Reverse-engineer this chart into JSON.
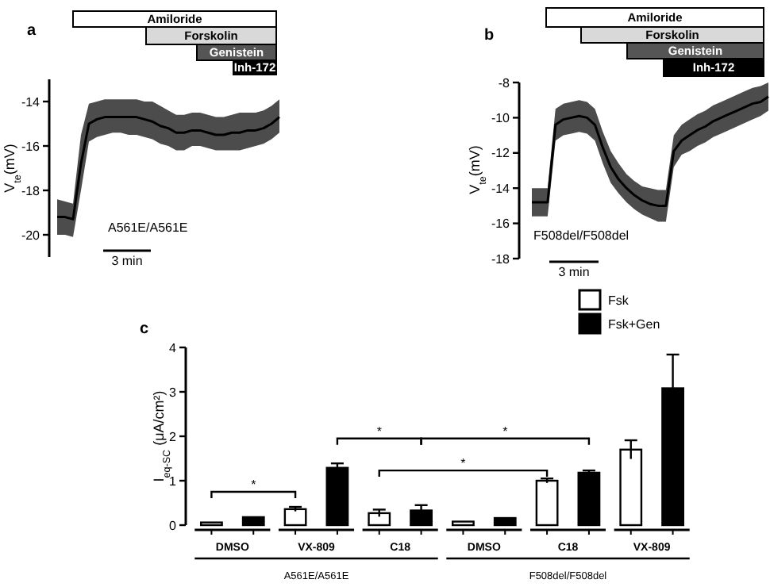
{
  "chart_data": [
    {
      "type": "line",
      "title": "a",
      "ylabel": "V$_{te}$(mV)",
      "categories": [
        null,
        null,
        null,
        null,
        null,
        null,
        null,
        null,
        null,
        null,
        null,
        null,
        null,
        null,
        null,
        null,
        null,
        null,
        null,
        null,
        null,
        null,
        null,
        null,
        null,
        null,
        null,
        null,
        null
      ],
      "ylim": [
        -21,
        -13
      ],
      "yticks": [
        -20,
        -18,
        -16,
        -14
      ],
      "tick_labels": "y",
      "series": [
        {
          "color": "#000000",
          "values": [
            -19.2,
            -19.2,
            -19.3,
            -16.8,
            -15.0,
            -14.8,
            -14.7,
            -14.7,
            -14.7,
            -14.7,
            -14.7,
            -14.8,
            -14.9,
            -15.1,
            -15.2,
            -15.4,
            -15.4,
            -15.3,
            -15.3,
            -15.4,
            -15.5,
            -15.5,
            -15.4,
            -15.4,
            -15.3,
            -15.3,
            -15.2,
            -15.0,
            -14.7
          ],
          "lower": [
            -20.0,
            -20.0,
            -20.1,
            -18.0,
            -15.8,
            -15.6,
            -15.5,
            -15.4,
            -15.4,
            -15.5,
            -15.5,
            -15.6,
            -15.7,
            -15.9,
            -16.0,
            -16.2,
            -16.2,
            -16.0,
            -16.0,
            -16.1,
            -16.2,
            -16.2,
            -16.2,
            -16.2,
            -16.1,
            -16.0,
            -15.9,
            -15.7,
            -15.4
          ],
          "upper": [
            -18.4,
            -18.5,
            -18.6,
            -15.5,
            -14.1,
            -14.0,
            -13.9,
            -13.9,
            -13.9,
            -13.9,
            -13.9,
            -14.0,
            -14.0,
            -14.2,
            -14.4,
            -14.6,
            -14.6,
            -14.5,
            -14.5,
            -14.6,
            -14.7,
            -14.7,
            -14.6,
            -14.5,
            -14.5,
            -14.5,
            -14.4,
            -14.2,
            -13.9
          ]
        }
      ],
      "annotations": [
        "Amiloride",
        "Forskolin",
        "Genistein",
        "Inh-172",
        "A561E/A561E",
        "3 min"
      ]
    },
    {
      "type": "line",
      "title": "b",
      "ylabel": "V$_{te}$(mV)",
      "categories": [
        null,
        null,
        null,
        null,
        null,
        null,
        null,
        null,
        null,
        null,
        null,
        null,
        null,
        null,
        null,
        null,
        null,
        null,
        null,
        null,
        null,
        null,
        null,
        null,
        null,
        null,
        null,
        null,
        null,
        null,
        null
      ],
      "ylim": [
        -18,
        -8
      ],
      "yticks": [
        -18,
        -16,
        -14,
        -12,
        -10,
        -8
      ],
      "tick_labels": "y",
      "series": [
        {
          "color": "#000000",
          "values": [
            -14.8,
            -14.8,
            -14.8,
            -10.4,
            -10.1,
            -10.0,
            -9.9,
            -10.0,
            -10.4,
            -11.7,
            -12.8,
            -13.5,
            -14.0,
            -14.4,
            -14.7,
            -14.9,
            -15.0,
            -15.0,
            -11.9,
            -11.3,
            -11.0,
            -10.7,
            -10.5,
            -10.2,
            -10.0,
            -9.8,
            -9.6,
            -9.4,
            -9.2,
            -9.1,
            -8.8
          ],
          "lower": [
            -15.6,
            -15.6,
            -15.6,
            -11.3,
            -11.0,
            -10.9,
            -10.8,
            -10.9,
            -11.3,
            -12.6,
            -13.7,
            -14.3,
            -14.8,
            -15.2,
            -15.5,
            -15.7,
            -15.9,
            -15.9,
            -12.8,
            -12.1,
            -11.9,
            -11.6,
            -11.4,
            -11.1,
            -10.9,
            -10.7,
            -10.5,
            -10.3,
            -10.1,
            -9.9,
            -9.6
          ],
          "upper": [
            -14.0,
            -14.0,
            -14.0,
            -9.5,
            -9.2,
            -9.1,
            -9.0,
            -9.1,
            -9.5,
            -10.8,
            -11.9,
            -12.6,
            -13.2,
            -13.6,
            -13.9,
            -14.0,
            -14.1,
            -14.1,
            -11.0,
            -10.4,
            -10.1,
            -9.8,
            -9.6,
            -9.3,
            -9.1,
            -8.9,
            -8.7,
            -8.5,
            -8.3,
            -8.2,
            -8.0
          ]
        }
      ],
      "annotations": [
        "Amiloride",
        "Forskolin",
        "Genistein",
        "Inh-172",
        "F508del/F508del",
        "3 min"
      ]
    },
    {
      "type": "bar",
      "title": "c",
      "ylabel": "I$_{eq-SC}$ (μA/cm²)",
      "categories": [
        "DMSO",
        "VX-809",
        "C18",
        "DMSO",
        "C18",
        "VX-809"
      ],
      "ylim": [
        0,
        4
      ],
      "yticks": [
        0,
        1,
        2,
        3,
        4
      ],
      "legend": "top right",
      "series": [
        {
          "name": "Fsk",
          "color": "#ffffff",
          "values": [
            0.06,
            0.36,
            0.27,
            0.08,
            1.0,
            1.7
          ],
          "errors": [
            null,
            0.05,
            0.08,
            null,
            0.05,
            0.21
          ]
        },
        {
          "name": "Fsk+Gen",
          "color": "#000000",
          "values": [
            0.18,
            1.29,
            0.33,
            0.16,
            1.18,
            3.08
          ],
          "errors": [
            null,
            0.1,
            0.12,
            null,
            0.05,
            0.76
          ]
        }
      ],
      "annotations": [
        "*",
        "*",
        "*",
        "*",
        "A561E/A561E",
        "F508del/F508del"
      ]
    }
  ]
}
